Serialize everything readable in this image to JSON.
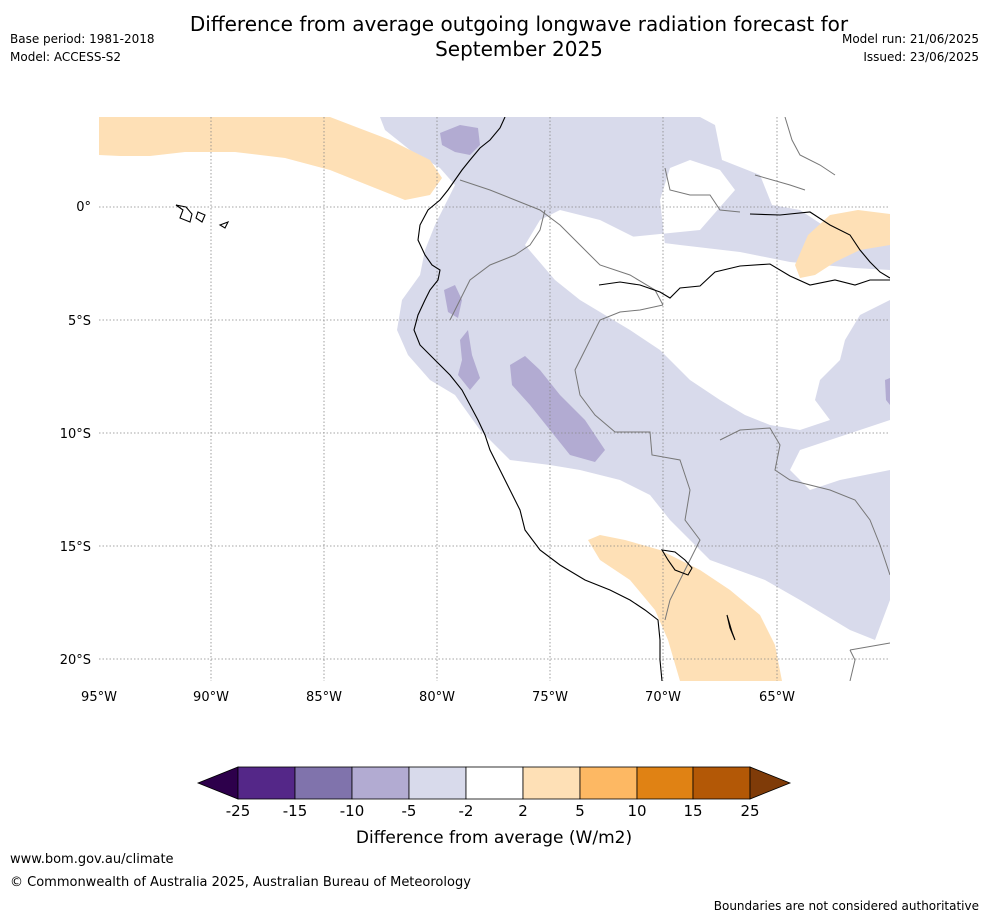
{
  "title": "Difference from average outgoing longwave radiation forecast for September 2025",
  "base_period": "Base period: 1981-2018",
  "model": "Model: ACCESS-S2",
  "model_run": "Model run: 21/06/2025",
  "issued": "Issued: 23/06/2025",
  "map": {
    "lat_ticks": [
      "0°",
      "5°S",
      "10°S",
      "15°S",
      "20°S"
    ],
    "lon_ticks": [
      "95°W",
      "90°W",
      "85°W",
      "80°W",
      "75°W",
      "70°W",
      "65°W"
    ]
  },
  "legend": {
    "title": "Difference from average (W/m2)",
    "ticks": [
      "-25",
      "-15",
      "-10",
      "-5",
      "-2",
      "2",
      "5",
      "10",
      "15",
      "25"
    ],
    "colors": {
      "below_min": "#2d004b",
      "bins": [
        "#542788",
        "#8073ac",
        "#b2abd2",
        "#d8daeb",
        "#ffffff",
        "#fee0b6",
        "#fdb863",
        "#e08214",
        "#b35806"
      ],
      "above_max": "#7f3b08"
    }
  },
  "footer": {
    "url": "www.bom.gov.au/climate",
    "copyright": "© Commonwealth of Australia 2025, Australian Bureau of Meteorology",
    "note": "Boundaries are not considered authoritative"
  }
}
